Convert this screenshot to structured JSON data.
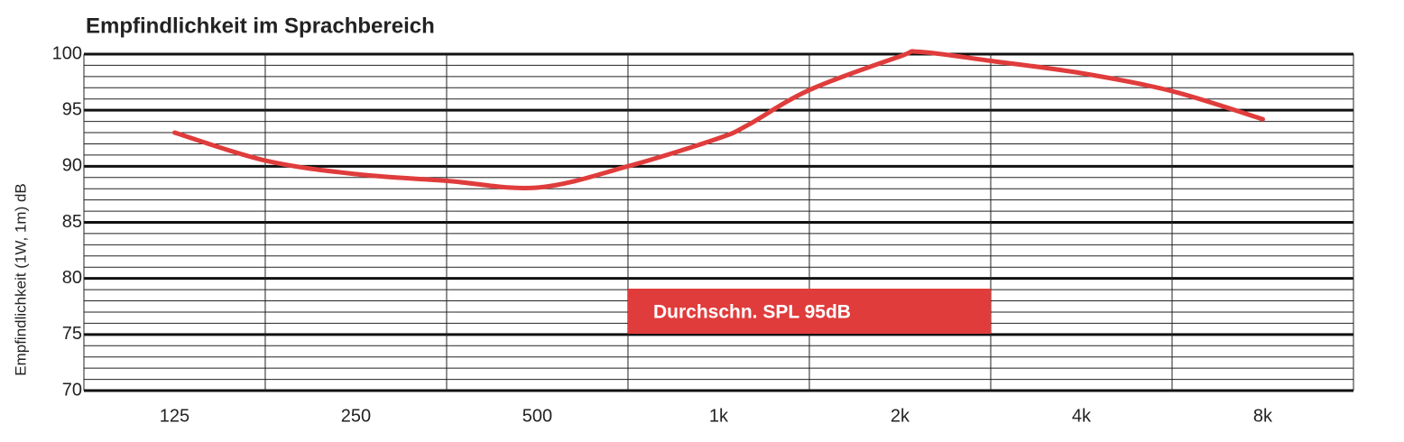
{
  "chart_data": {
    "type": "line",
    "title": "Empfindlichkeit im Sprachbereich",
    "y_label": "Empfindlichkeit (1W, 1m) dB",
    "annotation": "Durchschn. SPL 95dB",
    "x": [
      125,
      177,
      250,
      354,
      500,
      707,
      1000,
      1120,
      1414,
      2000,
      2158,
      2828,
      4000,
      5657,
      8000
    ],
    "series": [
      {
        "color": "#e03c3c",
        "values": [
          93.0,
          90.5,
          89.3,
          88.7,
          88.1,
          90.0,
          92.5,
          93.7,
          96.8,
          99.8,
          100.2,
          99.4,
          98.3,
          96.7,
          94.2
        ]
      }
    ],
    "xlim": [
      88.4,
      11314
    ],
    "log_x": true,
    "xticks": [
      125,
      250,
      500,
      {
        "value": 1000,
        "label": "1k"
      },
      {
        "value": 2000,
        "label": "2k"
      },
      {
        "value": 4000,
        "label": "4k"
      },
      {
        "value": 8000,
        "label": "8k"
      }
    ],
    "ylim": [
      70,
      100
    ],
    "yticks": [
      70,
      75,
      80,
      85,
      90,
      95,
      100
    ],
    "grid": true
  }
}
